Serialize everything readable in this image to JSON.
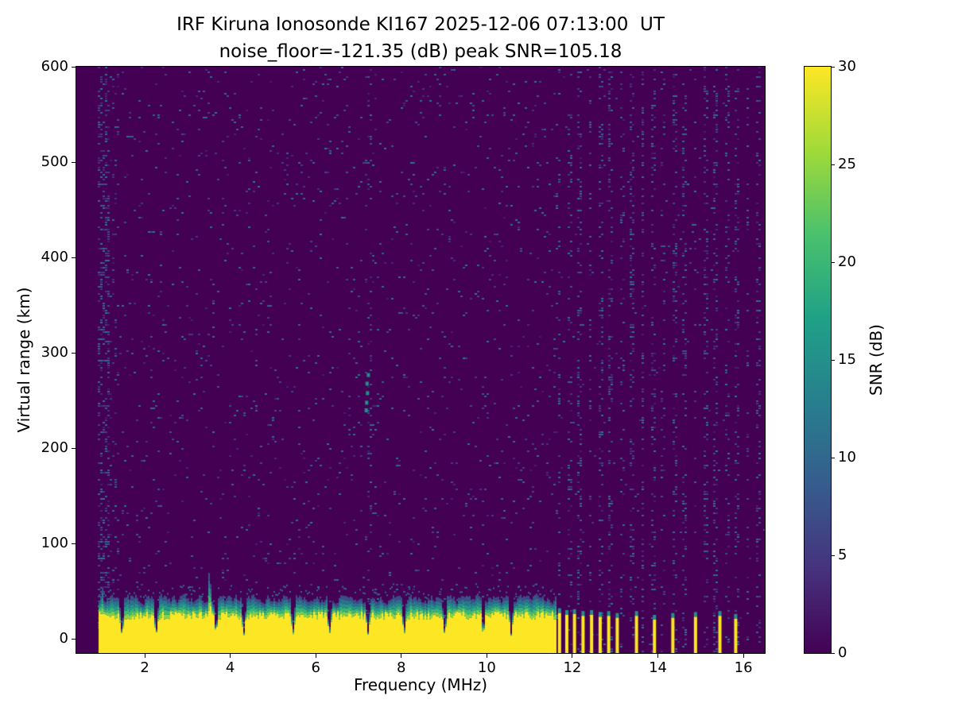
{
  "header": {
    "title_line1": "IRF Kiruna Ionosonde KI167 2025-12-06 07:13:00  UT",
    "title_line2": "noise_floor=-121.35 (dB) peak SNR=105.18"
  },
  "chart_data": {
    "type": "heatmap",
    "title": "IRF Kiruna Ionosonde KI167 2025-12-06 07:13:00  UT",
    "subtitle": "noise_floor=-121.35 (dB) peak SNR=105.18",
    "station": "KI167",
    "timestamp_ut": "2025-12-06 07:13:00",
    "noise_floor_db": -121.35,
    "peak_snr_db": 105.18,
    "xlabel": "Frequency (MHz)",
    "ylabel": "Virtual range (km)",
    "xlim": [
      0.4,
      16.5
    ],
    "ylim": [
      -15,
      600
    ],
    "xticks": [
      2,
      4,
      6,
      8,
      10,
      12,
      14,
      16
    ],
    "yticks": [
      0,
      100,
      200,
      300,
      400,
      500,
      600
    ],
    "grid": false,
    "colorbar": {
      "label": "SNR (dB)",
      "min": 0,
      "max": 30,
      "ticks": [
        0,
        5,
        10,
        15,
        20,
        25,
        30
      ]
    },
    "colormap": {
      "name": "viridis",
      "anchors": [
        "#440154",
        "#46327e",
        "#365c8d",
        "#277f8e",
        "#1fa187",
        "#4ac16d",
        "#a0da39",
        "#fde725"
      ]
    },
    "seed": 1337,
    "noise": {
      "speckle_density": 0.032,
      "data_f_min": 0.88,
      "left_dense_until": 1.15,
      "stripe_region_start": 11.64,
      "stripe_first": 11.66,
      "stripe_spacing_mhz": 0.245,
      "interference_freqs": [
        7.25
      ],
      "interference_blobs": [
        {
          "f": 7.18,
          "km": 240
        },
        {
          "f": 7.19,
          "km": 248
        },
        {
          "f": 7.21,
          "km": 258
        },
        {
          "f": 7.2,
          "km": 268
        },
        {
          "f": 7.23,
          "km": 277
        }
      ]
    },
    "echo_band": {
      "f_start": 0.92,
      "f_end": 11.62,
      "bottom_km": -15,
      "yellow_top_km": 24,
      "base_top_km": 32,
      "spikes": [
        {
          "f": 1.0,
          "h": 58
        },
        {
          "f": 2.55,
          "h": 46
        },
        {
          "f": 3.5,
          "h": 86
        },
        {
          "f": 5.2,
          "h": 44
        },
        {
          "f": 7.05,
          "h": 46
        },
        {
          "f": 9.35,
          "h": 50
        },
        {
          "f": 10.9,
          "h": 42
        }
      ],
      "notches": [
        1.45,
        2.25,
        3.65,
        4.3,
        5.45,
        6.3,
        7.2,
        8.05,
        9.0,
        9.9,
        10.55
      ]
    },
    "sporadic_bars": [
      {
        "f": 11.7,
        "top": 27
      },
      {
        "f": 11.87,
        "top": 25
      },
      {
        "f": 12.05,
        "top": 26
      },
      {
        "f": 12.25,
        "top": 24
      },
      {
        "f": 12.45,
        "top": 25
      },
      {
        "f": 12.65,
        "top": 23
      },
      {
        "f": 12.85,
        "top": 24
      },
      {
        "f": 13.05,
        "top": 22
      },
      {
        "f": 13.5,
        "top": 24
      },
      {
        "f": 13.92,
        "top": 20
      },
      {
        "f": 14.35,
        "top": 22
      },
      {
        "f": 14.88,
        "top": 23
      },
      {
        "f": 15.45,
        "top": 24
      },
      {
        "f": 15.82,
        "top": 21
      }
    ]
  }
}
